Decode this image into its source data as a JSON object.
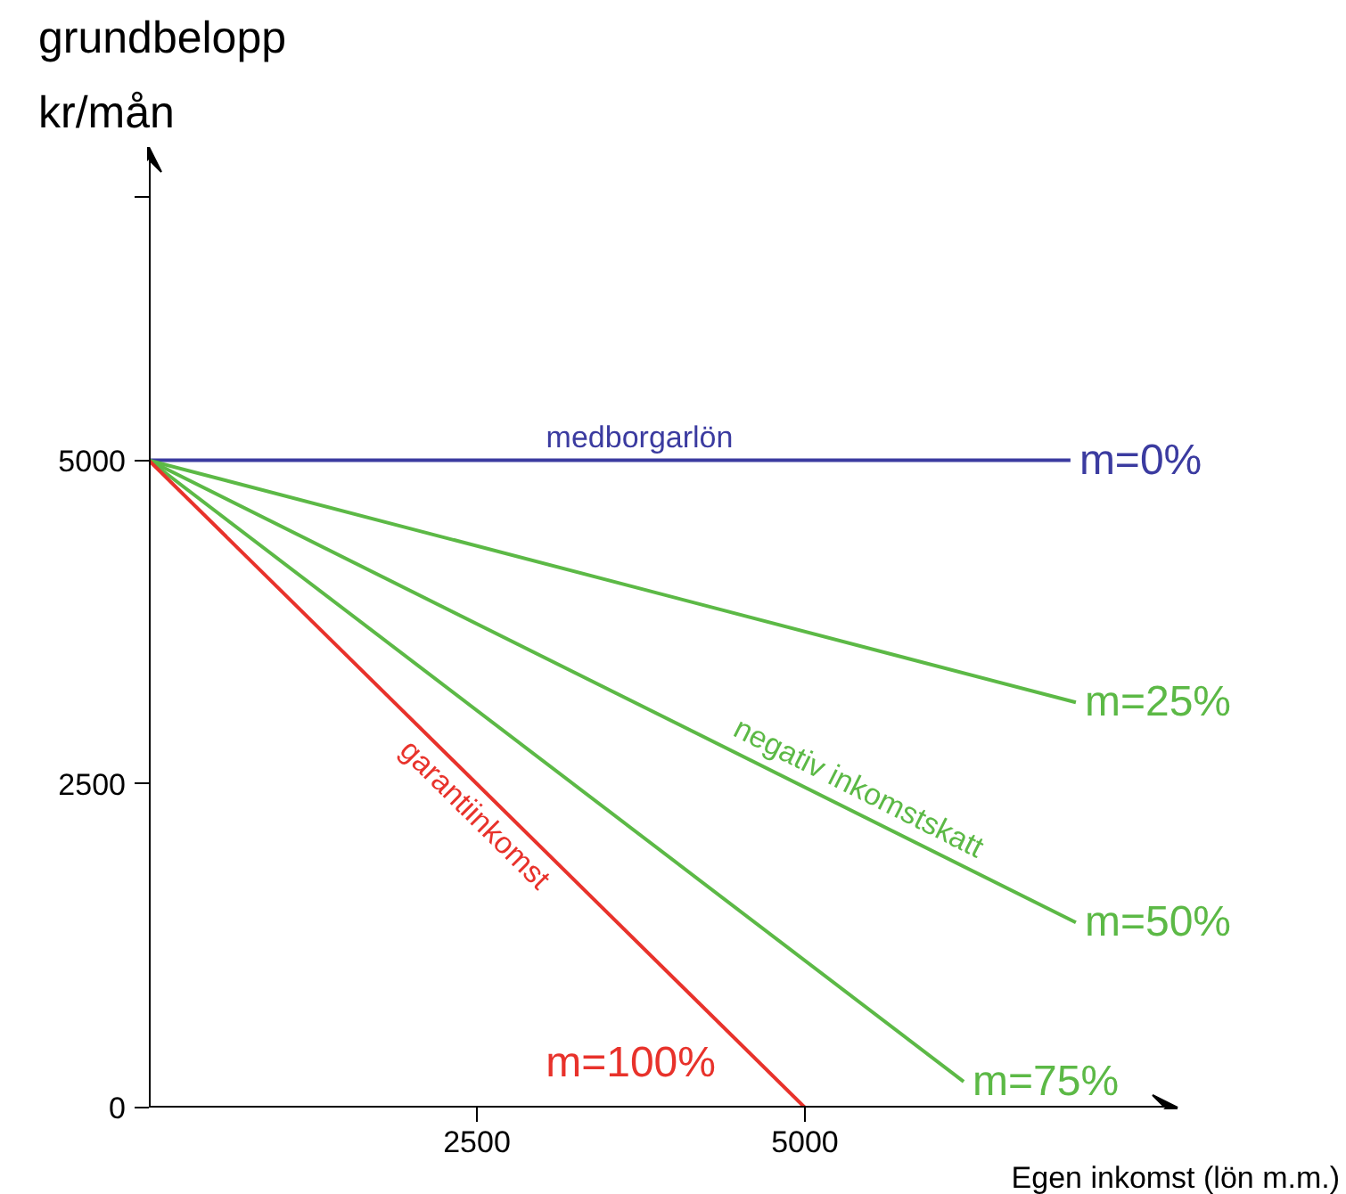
{
  "chart_data": {
    "type": "line",
    "xlabel": "Egen inkomst (lön m.m.)",
    "ylabel": "grundbelopp\nkr/mån",
    "xlim": [
      0,
      7840
    ],
    "ylim": [
      0,
      7420
    ],
    "xticks": [
      2500,
      5000
    ],
    "yticks": [
      0,
      2500,
      5000,
      {
        "value": 7030,
        "label": null
      }
    ],
    "grid": false,
    "marker": "none",
    "line_style": "solid",
    "series": [
      {
        "name": "m=0%",
        "color": "#3b3ba0",
        "x": [
          0,
          7024
        ],
        "values": [
          5000,
          5000
        ]
      },
      {
        "name": "m=25%",
        "color": "#5cb946",
        "x": [
          0,
          7065
        ],
        "values": [
          5000,
          3130
        ]
      },
      {
        "name": "m=50%",
        "color": "#5cb946",
        "x": [
          0,
          7065
        ],
        "values": [
          5000,
          1430
        ]
      },
      {
        "name": "m=75%",
        "color": "#5cb946",
        "x": [
          0,
          6210
        ],
        "values": [
          5000,
          200
        ]
      },
      {
        "name": "m=100%",
        "color": "#e8322b",
        "x": [
          0,
          5000
        ],
        "values": [
          5000,
          0
        ]
      }
    ],
    "annotations": [
      {
        "text": "medborgarlön",
        "x": 3740,
        "y": 5000
      },
      {
        "text": "negativ inkomstskatt",
        "x": 5330,
        "y": 2310
      },
      {
        "text": "garantiinkomst",
        "x": 2610,
        "y": 2390
      }
    ]
  }
}
